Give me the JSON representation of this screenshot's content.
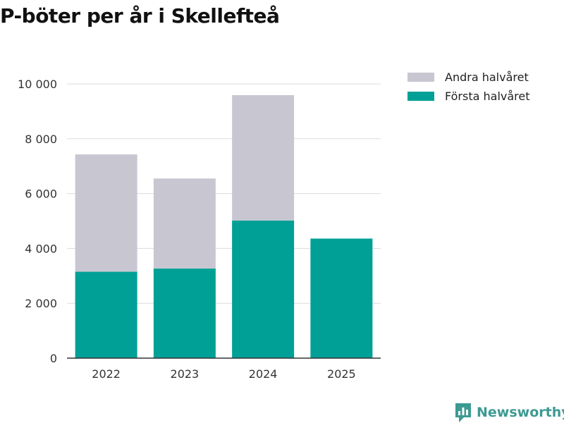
{
  "chart_data": {
    "type": "bar",
    "stacked": true,
    "title": "P-böter per år i Skellefteå",
    "categories": [
      "2022",
      "2023",
      "2024",
      "2025"
    ],
    "series": [
      {
        "name": "Första halvåret",
        "values": [
          3150,
          3270,
          5020,
          4360
        ],
        "color": "#00a096"
      },
      {
        "name": "Andra halvåret",
        "values": [
          4280,
          3280,
          4570,
          null
        ],
        "color": "#c8c7d1"
      }
    ],
    "yticks": [
      0,
      2000,
      4000,
      6000,
      8000,
      10000
    ],
    "ytick_labels": [
      "0",
      "2 000",
      "4 000",
      "6 000",
      "8 000",
      "10 000"
    ],
    "ylim": [
      0,
      10000
    ],
    "xlabel": "",
    "ylabel": "",
    "grid": true,
    "legend_position": "top-right",
    "legend": [
      {
        "label": "Andra halvåret",
        "color": "#c8c7d1"
      },
      {
        "label": "Första halvåret",
        "color": "#00a096"
      }
    ]
  },
  "branding": {
    "name": "Newsworthy",
    "icon": "newsworthy-logo-icon",
    "color": "#3d9a92"
  }
}
